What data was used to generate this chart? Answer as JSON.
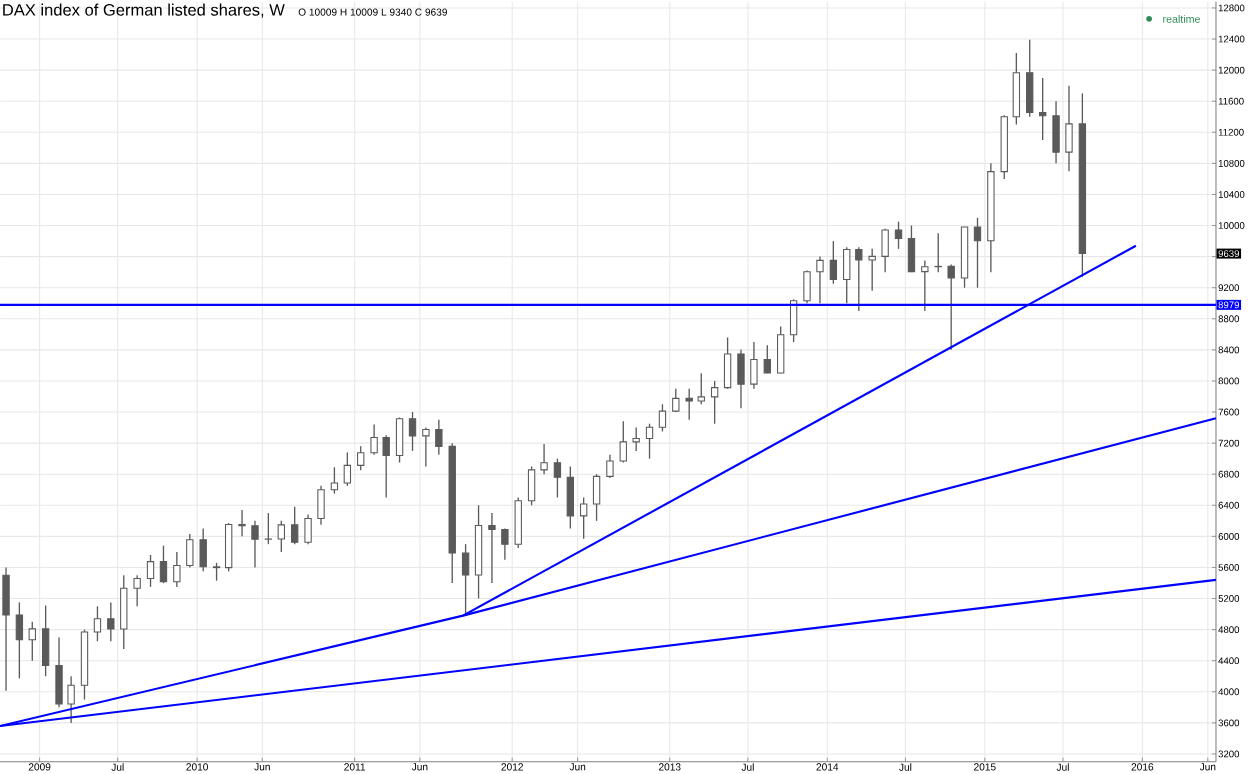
{
  "chart_data": {
    "type": "candlestick",
    "title": "DAX index of German listed shares, W",
    "annotations": [
      "O 10009 H 10009 L 9340 C 9639",
      "realtime",
      "9639"
    ],
    "x": [
      "2008-10-15",
      "2008-11-15",
      "2008-12-15",
      "2009-01-15",
      "2009-02-15",
      "2009-03-15",
      "2009-04-15",
      "2009-05-15",
      "2009-06-15",
      "2009-07-15",
      "2009-08-15",
      "2009-09-15",
      "2009-10-15",
      "2009-11-15",
      "2009-12-15",
      "2010-01-15",
      "2010-02-15",
      "2010-03-15",
      "2010-04-15",
      "2010-05-15",
      "2010-06-15",
      "2010-07-15",
      "2010-08-15",
      "2010-09-15",
      "2010-10-15",
      "2010-11-15",
      "2010-12-15",
      "2011-01-15",
      "2011-02-15",
      "2011-03-15",
      "2011-04-15",
      "2011-05-15",
      "2011-06-15",
      "2011-07-15",
      "2011-08-15",
      "2011-09-15",
      "2011-10-15",
      "2011-11-15",
      "2011-12-15",
      "2012-01-15",
      "2012-02-15",
      "2012-03-15",
      "2012-04-15",
      "2012-05-15",
      "2012-06-15",
      "2012-07-15",
      "2012-08-15",
      "2012-09-15",
      "2012-10-15",
      "2012-11-15",
      "2012-12-15",
      "2013-01-15",
      "2013-02-15",
      "2013-03-15",
      "2013-04-15",
      "2013-05-15",
      "2013-06-15",
      "2013-07-15",
      "2013-08-15",
      "2013-09-15",
      "2013-10-15",
      "2013-11-15",
      "2013-12-15",
      "2014-01-15",
      "2014-02-15",
      "2014-03-15",
      "2014-04-15",
      "2014-05-15",
      "2014-06-15",
      "2014-07-15",
      "2014-08-15",
      "2014-09-15",
      "2014-10-15",
      "2014-11-15",
      "2014-12-15",
      "2015-01-15",
      "2015-02-15",
      "2015-03-15",
      "2015-04-15",
      "2015-05-15",
      "2015-06-15",
      "2015-07-15",
      "2015-08-15"
    ],
    "ohlc": [
      [
        5500,
        5600,
        4014,
        4988
      ],
      [
        4988,
        5150,
        4173,
        4669
      ],
      [
        4669,
        4900,
        4400,
        4810
      ],
      [
        4810,
        5110,
        4200,
        4338
      ],
      [
        4338,
        4700,
        3800,
        3844
      ],
      [
        3844,
        4200,
        3600,
        4085
      ],
      [
        4085,
        4800,
        3900,
        4770
      ],
      [
        4770,
        5100,
        4650,
        4940
      ],
      [
        4940,
        5150,
        4650,
        4808
      ],
      [
        4808,
        5500,
        4550,
        5332
      ],
      [
        5332,
        5500,
        5100,
        5458
      ],
      [
        5458,
        5760,
        5350,
        5675
      ],
      [
        5675,
        5880,
        5400,
        5415
      ],
      [
        5415,
        5800,
        5350,
        5625
      ],
      [
        5625,
        6030,
        5600,
        5957
      ],
      [
        5957,
        6100,
        5550,
        5608
      ],
      [
        5608,
        5660,
        5430,
        5598
      ],
      [
        5598,
        6170,
        5550,
        6154
      ],
      [
        6154,
        6340,
        6000,
        6136
      ],
      [
        6136,
        6200,
        5600,
        5964
      ],
      [
        5964,
        6300,
        5900,
        5966
      ],
      [
        5966,
        6200,
        5800,
        6148
      ],
      [
        6148,
        6380,
        5900,
        5925
      ],
      [
        5925,
        6280,
        5900,
        6229
      ],
      [
        6229,
        6650,
        6150,
        6601
      ],
      [
        6601,
        6890,
        6550,
        6688
      ],
      [
        6688,
        7080,
        6650,
        6914
      ],
      [
        6914,
        7160,
        6850,
        7077
      ],
      [
        7077,
        7440,
        7050,
        7272
      ],
      [
        7272,
        7300,
        6500,
        7041
      ],
      [
        7041,
        7530,
        6950,
        7514
      ],
      [
        7514,
        7600,
        7100,
        7293
      ],
      [
        7293,
        7400,
        6900,
        7376
      ],
      [
        7376,
        7500,
        7050,
        7158
      ],
      [
        7158,
        7200,
        5400,
        5785
      ],
      [
        5785,
        5900,
        4975,
        5502
      ],
      [
        5502,
        6400,
        5200,
        6141
      ],
      [
        6141,
        6300,
        5400,
        6088
      ],
      [
        6088,
        6100,
        5700,
        5898
      ],
      [
        5898,
        6500,
        5850,
        6458
      ],
      [
        6458,
        6900,
        6400,
        6856
      ],
      [
        6856,
        7190,
        6800,
        6947
      ],
      [
        6947,
        7000,
        6500,
        6761
      ],
      [
        6761,
        6900,
        6100,
        6264
      ],
      [
        6264,
        6500,
        5970,
        6416
      ],
      [
        6416,
        6800,
        6200,
        6772
      ],
      [
        6772,
        7050,
        6750,
        6970
      ],
      [
        6970,
        7480,
        6950,
        7216
      ],
      [
        7216,
        7400,
        7100,
        7260
      ],
      [
        7260,
        7450,
        7000,
        7405
      ],
      [
        7405,
        7700,
        7350,
        7612
      ],
      [
        7612,
        7900,
        7600,
        7776
      ],
      [
        7776,
        7900,
        7500,
        7741
      ],
      [
        7741,
        8100,
        7700,
        7795
      ],
      [
        7795,
        8000,
        7450,
        7914
      ],
      [
        7914,
        8560,
        7900,
        8348
      ],
      [
        8348,
        8400,
        7650,
        7959
      ],
      [
        7959,
        8500,
        7900,
        8276
      ],
      [
        8276,
        8460,
        8100,
        8103
      ],
      [
        8103,
        8700,
        8100,
        8594
      ],
      [
        8594,
        9050,
        8500,
        9033
      ],
      [
        9033,
        9420,
        9000,
        9405
      ],
      [
        9405,
        9600,
        9000,
        9552
      ],
      [
        9552,
        9800,
        9250,
        9306
      ],
      [
        9306,
        9720,
        9000,
        9692
      ],
      [
        9692,
        9720,
        8900,
        9556
      ],
      [
        9556,
        9700,
        9160,
        9603
      ],
      [
        9603,
        9960,
        9400,
        9943
      ],
      [
        9943,
        10050,
        9700,
        9833
      ],
      [
        9833,
        10000,
        9400,
        9407
      ],
      [
        9407,
        9550,
        8900,
        9470
      ],
      [
        9470,
        9900,
        9400,
        9474
      ],
      [
        9474,
        9500,
        8400,
        9326
      ],
      [
        9326,
        9980,
        9200,
        9980
      ],
      [
        9980,
        10100,
        9200,
        9805
      ],
      [
        9805,
        10800,
        9400,
        10694
      ],
      [
        10694,
        11420,
        10600,
        11401
      ],
      [
        11401,
        12220,
        11300,
        11966
      ],
      [
        11966,
        12390,
        11400,
        11454
      ],
      [
        11454,
        11900,
        11100,
        11413
      ],
      [
        11413,
        11600,
        10800,
        10945
      ],
      [
        10945,
        11800,
        10700,
        11308
      ],
      [
        11308,
        11700,
        9340,
        9639
      ]
    ],
    "color": "#5a5a5a",
    "series": [
      {
        "type": "line",
        "color": "#0000ff",
        "x": [
          "2008-10-01",
          "2016-06-20"
        ],
        "values": [
          3560,
          5440
        ]
      },
      {
        "type": "line",
        "color": "#0000ff",
        "x": [
          "2008-10-01",
          "2011-09-09",
          "2016-06-20"
        ],
        "values": [
          3560,
          4980,
          7520
        ]
      },
      {
        "type": "line",
        "color": "#0000ff",
        "x": [
          "2011-09-09",
          "2015-12-17"
        ],
        "values": [
          4980,
          9740
        ]
      }
    ],
    "ref_lines": [
      {
        "axis": "y",
        "value": 8979,
        "label": "8979",
        "color": "#0000ff"
      }
    ],
    "xlim": [
      "2008-10-01",
      "2016-06-20"
    ],
    "xticks": [
      {
        "value": "2009-01-01",
        "label": "2009"
      },
      {
        "value": "2009-07-01",
        "label": "Jul"
      },
      {
        "value": "2010-01-01",
        "label": "2010"
      },
      {
        "value": "2010-06-01",
        "label": "Jun"
      },
      {
        "value": "2011-01-01",
        "label": "2011"
      },
      {
        "value": "2011-06-01",
        "label": "Jun"
      },
      {
        "value": "2012-01-01",
        "label": "2012"
      },
      {
        "value": "2012-06-01",
        "label": "Jun"
      },
      {
        "value": "2013-01-01",
        "label": "2013"
      },
      {
        "value": "2013-07-01",
        "label": "Jul"
      },
      {
        "value": "2014-01-01",
        "label": "2014"
      },
      {
        "value": "2014-07-01",
        "label": "Jul"
      },
      {
        "value": "2015-01-01",
        "label": "2015"
      },
      {
        "value": "2015-07-01",
        "label": "Jul"
      },
      {
        "value": "2016-01-01",
        "label": "2016"
      },
      {
        "value": "2016-06-01",
        "label": "Jun"
      }
    ],
    "ylim": [
      3100,
      12880
    ],
    "yticks": [
      3200,
      3600,
      4000,
      4400,
      4800,
      5200,
      5600,
      6000,
      6400,
      6800,
      7200,
      7600,
      8000,
      8400,
      8800,
      9200,
      {
        "value": 9600,
        "label": null
      },
      10000,
      10400,
      10800,
      11200,
      11600,
      12000,
      12400,
      12800
    ],
    "grid": true
  }
}
